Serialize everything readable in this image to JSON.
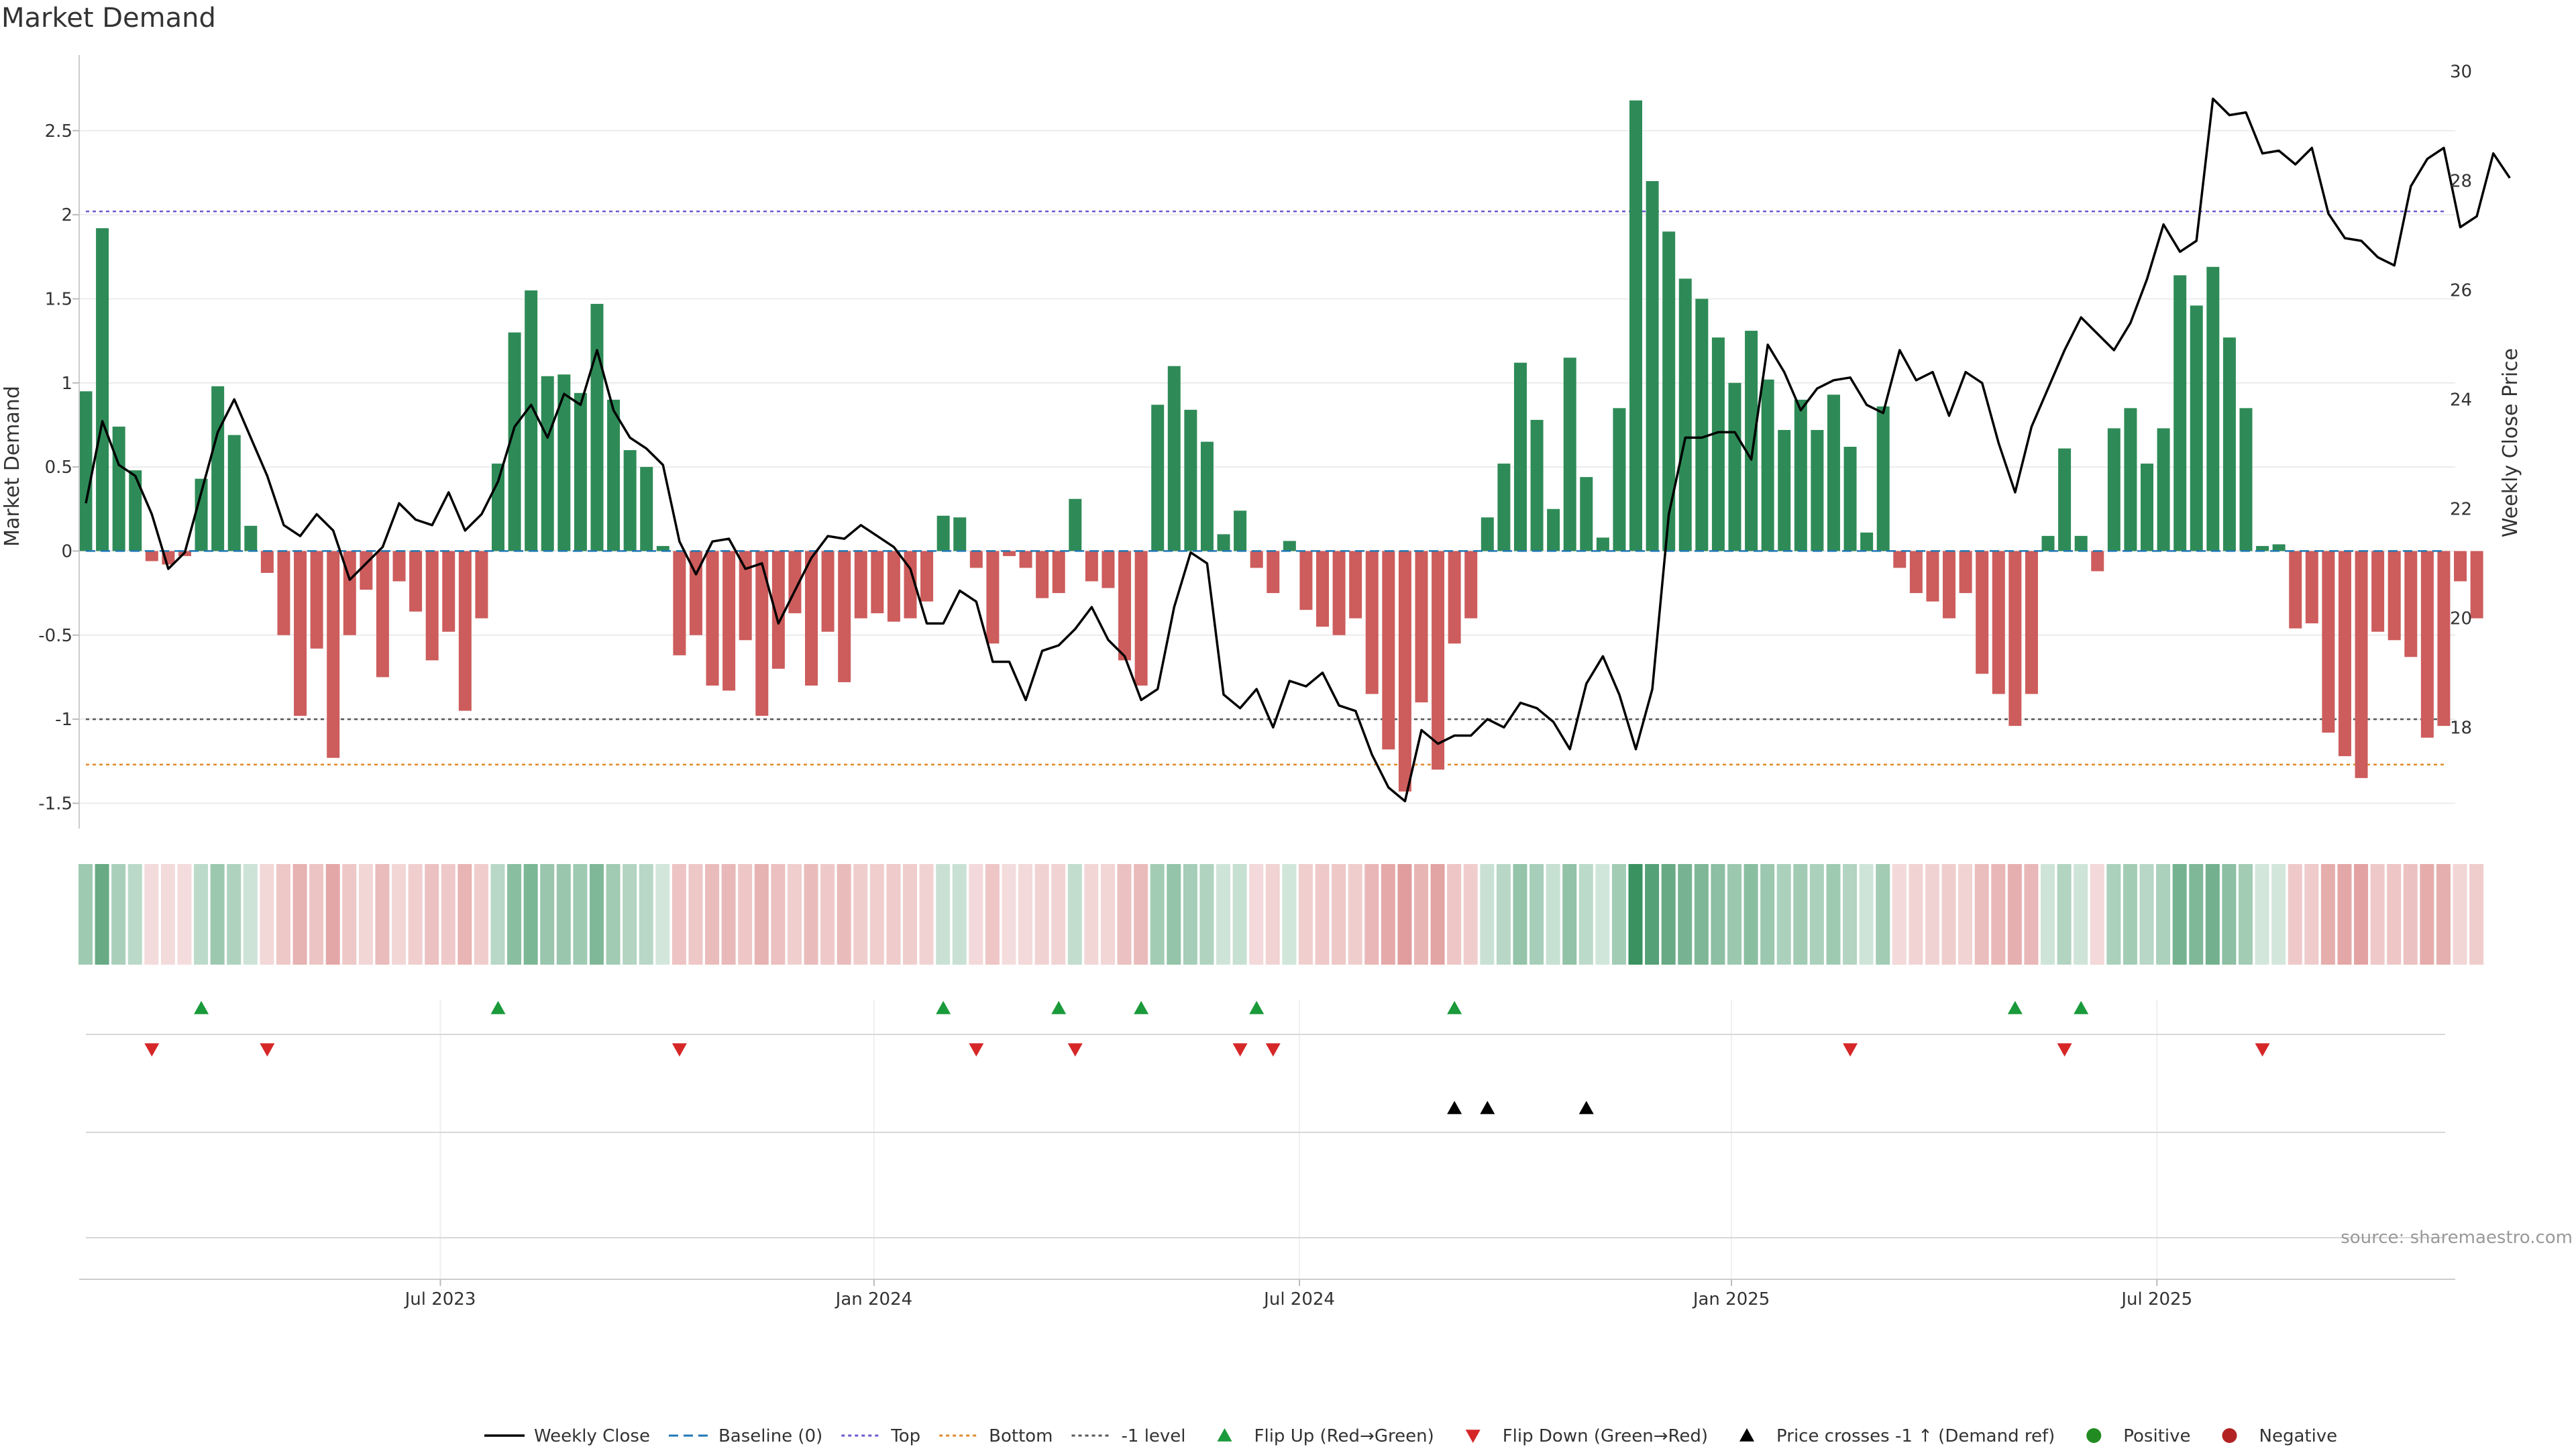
{
  "title": "Market Demand",
  "source": "source: sharemaestro.com",
  "colors": {
    "positive": "#2e8b57",
    "negative": "#cd5c5c",
    "price": "#000000",
    "top": "#6a5acd",
    "bottom": "#e08a2c",
    "neg_level": "#555555",
    "baseline": "#1f77b4",
    "flip_up": "#1a9a3a",
    "flip_down": "#d62728"
  },
  "chart_data": {
    "type": "bar",
    "weeks": 148,
    "date_ticks": [
      {
        "label": "Jul 2023",
        "week": 21.5
      },
      {
        "label": "Jan 2024",
        "week": 47.8
      },
      {
        "label": "Jul 2024",
        "week": 73.6
      },
      {
        "label": "Jan 2025",
        "week": 99.8
      },
      {
        "label": "Jul 2025",
        "week": 125.6
      }
    ],
    "demand": [
      0.95,
      1.92,
      0.74,
      0.48,
      -0.06,
      -0.08,
      -0.03,
      0.43,
      0.98,
      0.69,
      0.15,
      -0.13,
      -0.5,
      -0.98,
      -0.58,
      -1.23,
      -0.5,
      -0.23,
      -0.75,
      -0.18,
      -0.36,
      -0.65,
      -0.48,
      -0.95,
      -0.4,
      0.52,
      1.3,
      1.55,
      1.04,
      1.05,
      0.94,
      1.47,
      0.9,
      0.6,
      0.5,
      0.03,
      -0.62,
      -0.5,
      -0.8,
      -0.83,
      -0.53,
      -0.98,
      -0.7,
      -0.37,
      -0.8,
      -0.48,
      -0.78,
      -0.4,
      -0.37,
      -0.42,
      -0.4,
      -0.3,
      0.21,
      0.2,
      -0.1,
      -0.55,
      -0.03,
      -0.1,
      -0.28,
      -0.25,
      0.31,
      -0.18,
      -0.22,
      -0.65,
      -0.8,
      0.87,
      1.1,
      0.84,
      0.65,
      0.1,
      0.24,
      -0.1,
      -0.25,
      0.06,
      -0.35,
      -0.45,
      -0.5,
      -0.4,
      -0.85,
      -1.18,
      -1.43,
      -0.9,
      -1.3,
      -0.55,
      -0.4,
      0.2,
      0.52,
      1.12,
      0.78,
      0.25,
      1.15,
      0.44,
      0.08,
      0.85,
      2.68,
      2.2,
      1.9,
      1.62,
      1.5,
      1.27,
      1.0,
      1.31,
      1.02,
      0.72,
      0.9,
      0.72,
      0.93,
      0.62,
      0.11,
      0.86,
      -0.1,
      -0.25,
      -0.3,
      -0.4,
      -0.25,
      -0.73,
      -0.85,
      -1.04,
      -0.85,
      0.09,
      0.61,
      0.09,
      -0.12,
      0.73,
      0.85,
      0.52,
      0.73,
      1.64,
      1.46,
      1.69,
      1.27,
      0.85,
      0.03,
      0.04,
      -0.46,
      -0.43,
      -1.08,
      -1.22,
      -1.35,
      -0.48,
      -0.53,
      -0.63,
      -1.11,
      -1.04,
      -0.18,
      -0.4
    ],
    "price": [
      22.1,
      23.6,
      22.8,
      22.6,
      21.9,
      20.9,
      21.2,
      22.3,
      23.4,
      24.0,
      23.3,
      22.6,
      21.7,
      21.5,
      21.9,
      21.6,
      20.7,
      21.0,
      21.3,
      22.1,
      21.8,
      21.7,
      22.3,
      21.6,
      21.9,
      22.5,
      23.5,
      23.9,
      23.3,
      24.1,
      23.9,
      24.9,
      23.8,
      23.3,
      23.1,
      22.8,
      21.4,
      20.8,
      21.4,
      21.45,
      20.9,
      21.0,
      19.9,
      20.5,
      21.1,
      21.5,
      21.45,
      21.7,
      21.5,
      21.3,
      20.9,
      19.9,
      19.9,
      20.5,
      20.3,
      19.2,
      19.2,
      18.5,
      19.4,
      19.5,
      19.8,
      20.2,
      19.6,
      19.3,
      18.5,
      18.7,
      20.2,
      21.2,
      21.0,
      18.6,
      18.35,
      18.7,
      18.0,
      18.85,
      18.75,
      19.0,
      18.4,
      18.3,
      17.5,
      16.9,
      16.65,
      17.95,
      17.7,
      17.85,
      17.85,
      18.15,
      18.0,
      18.45,
      18.35,
      18.1,
      17.6,
      18.8,
      19.3,
      18.6,
      17.6,
      18.7,
      21.9,
      23.3,
      23.3,
      23.4,
      23.4,
      22.9,
      25.0,
      24.5,
      23.8,
      24.2,
      24.35,
      24.4,
      23.9,
      23.75,
      24.9,
      24.35,
      24.5,
      23.7,
      24.5,
      24.3,
      23.2,
      22.3,
      23.5,
      24.2,
      24.9,
      25.5,
      25.2,
      24.9,
      25.4,
      26.2,
      27.2,
      26.7,
      26.9,
      29.5,
      29.2,
      29.25,
      28.5,
      28.55,
      28.3,
      28.6,
      27.4,
      26.95,
      26.9,
      26.6,
      26.45,
      27.9,
      28.4,
      28.6,
      27.15,
      27.35,
      28.5,
      28.05
    ],
    "flip_up_weeks": [
      7,
      25,
      52,
      59,
      64,
      71,
      83,
      117,
      121
    ],
    "flip_down_weeks": [
      4,
      11,
      36,
      54,
      60,
      70,
      72,
      107,
      120,
      132
    ],
    "price_cross_weeks": [
      83,
      85,
      91
    ],
    "y_left": {
      "label": "Market Demand",
      "min": -1.65,
      "max": 2.95,
      "ticks": [
        -1.5,
        -1,
        -0.5,
        0,
        0.5,
        1,
        1.5,
        2,
        2.5
      ]
    },
    "y_right": {
      "label": "Weekly Close Price",
      "min": 16.15,
      "max": 30.3,
      "ticks": [
        18,
        20,
        22,
        24,
        26,
        28,
        30
      ]
    },
    "levels": {
      "top": 2.02,
      "bottom": -1.27,
      "neg_one": -1.0,
      "baseline": 0
    },
    "legend": [
      {
        "key": "weekly_close",
        "label": "Weekly Close"
      },
      {
        "key": "baseline",
        "label": "Baseline (0)"
      },
      {
        "key": "top",
        "label": "Top"
      },
      {
        "key": "bottom",
        "label": "Bottom"
      },
      {
        "key": "neg_one",
        "label": "-1 level"
      },
      {
        "key": "flip_up",
        "label": "Flip Up (Red→Green)"
      },
      {
        "key": "flip_down",
        "label": "Flip Down (Green→Red)"
      },
      {
        "key": "price_cross",
        "label": "Price crosses -1 ↑ (Demand ref)"
      },
      {
        "key": "positive",
        "label": "Positive"
      },
      {
        "key": "negative",
        "label": "Negative"
      }
    ]
  }
}
